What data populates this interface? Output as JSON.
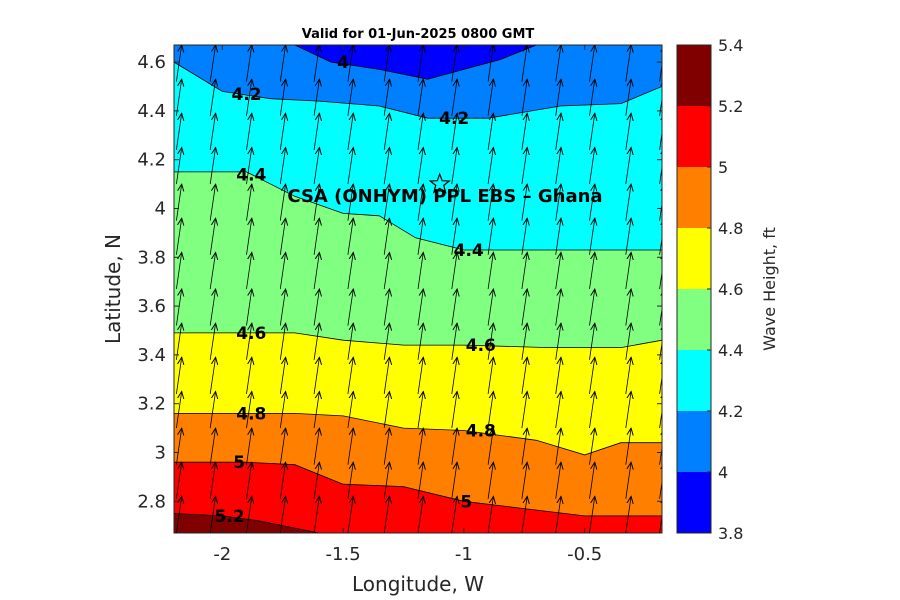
{
  "chart_data": {
    "type": "heatmap",
    "title": "Valid for 01-Jun-2025 0800 GMT",
    "xlabel": "Longitude, W",
    "ylabel": "Latitude, N",
    "xlim": [
      -2.2,
      -0.18
    ],
    "ylim": [
      2.67,
      4.67
    ],
    "x_ticks": [
      -2,
      -1.5,
      -1,
      -0.5
    ],
    "x_tick_labels": [
      "-2",
      "-1.5",
      "-1",
      "-0.5"
    ],
    "y_ticks": [
      2.8,
      3,
      3.2,
      3.4,
      3.6,
      3.8,
      4,
      4.2,
      4.4,
      4.6
    ],
    "y_tick_labels": [
      "2.8",
      "3",
      "3.2",
      "3.4",
      "3.6",
      "3.8",
      "4",
      "4.2",
      "4.4",
      "4.6"
    ],
    "colorbar": {
      "label": "Wave Height, ft",
      "levels": [
        3.8,
        4,
        4.2,
        4.4,
        4.6,
        4.8,
        5,
        5.2,
        5.4
      ],
      "tick_labels": [
        "3.8",
        "4",
        "4.2",
        "4.4",
        "4.6",
        "4.8",
        "5",
        "5.2",
        "5.4"
      ],
      "colors": [
        "#0000ff",
        "#0080ff",
        "#00ffff",
        "#80ff80",
        "#ffff00",
        "#ff8000",
        "#ff0000",
        "#800000"
      ]
    },
    "contours": [
      {
        "level": 4.0,
        "points": [
          [
            -1.7,
            4.67
          ],
          [
            -1.55,
            4.6
          ],
          [
            -1.35,
            4.57
          ],
          [
            -1.15,
            4.53
          ],
          [
            -1.0,
            4.57
          ],
          [
            -0.85,
            4.61
          ],
          [
            -0.7,
            4.67
          ]
        ]
      },
      {
        "level": 4.2,
        "points": [
          [
            -2.2,
            4.6
          ],
          [
            -2.0,
            4.48
          ],
          [
            -1.8,
            4.45
          ],
          [
            -1.6,
            4.44
          ],
          [
            -1.35,
            4.42
          ],
          [
            -1.15,
            4.37
          ],
          [
            -0.9,
            4.37
          ],
          [
            -0.6,
            4.42
          ],
          [
            -0.35,
            4.43
          ],
          [
            -0.18,
            4.5
          ]
        ]
      },
      {
        "level": 4.4,
        "points": [
          [
            -2.2,
            4.15
          ],
          [
            -1.9,
            4.15
          ],
          [
            -1.7,
            4.05
          ],
          [
            -1.5,
            3.98
          ],
          [
            -1.35,
            3.97
          ],
          [
            -1.2,
            3.88
          ],
          [
            -1.0,
            3.83
          ],
          [
            -0.7,
            3.83
          ],
          [
            -0.4,
            3.83
          ],
          [
            -0.18,
            3.83
          ]
        ]
      },
      {
        "level": 4.6,
        "points": [
          [
            -2.2,
            3.49
          ],
          [
            -1.9,
            3.49
          ],
          [
            -1.7,
            3.49
          ],
          [
            -1.5,
            3.46
          ],
          [
            -1.25,
            3.44
          ],
          [
            -1.0,
            3.44
          ],
          [
            -0.65,
            3.43
          ],
          [
            -0.35,
            3.43
          ],
          [
            -0.18,
            3.46
          ]
        ]
      },
      {
        "level": 4.8,
        "points": [
          [
            -2.2,
            3.16
          ],
          [
            -1.9,
            3.16
          ],
          [
            -1.7,
            3.16
          ],
          [
            -1.5,
            3.15
          ],
          [
            -1.25,
            3.1
          ],
          [
            -1.0,
            3.09
          ],
          [
            -0.7,
            3.05
          ],
          [
            -0.5,
            2.99
          ],
          [
            -0.35,
            3.04
          ],
          [
            -0.18,
            3.04
          ]
        ]
      },
      {
        "level": 5.0,
        "points": [
          [
            -2.2,
            2.96
          ],
          [
            -1.9,
            2.96
          ],
          [
            -1.7,
            2.95
          ],
          [
            -1.5,
            2.87
          ],
          [
            -1.25,
            2.86
          ],
          [
            -1.0,
            2.8
          ],
          [
            -0.75,
            2.77
          ],
          [
            -0.5,
            2.74
          ],
          [
            -0.18,
            2.74
          ]
        ]
      },
      {
        "level": 5.2,
        "points": [
          [
            -2.2,
            2.75
          ],
          [
            -2.0,
            2.74
          ],
          [
            -1.85,
            2.72
          ],
          [
            -1.7,
            2.69
          ],
          [
            -1.6,
            2.67
          ]
        ]
      }
    ],
    "contour_labels": [
      {
        "text": "4",
        "x": -1.5,
        "y": 4.6
      },
      {
        "text": "4.2",
        "x": -1.9,
        "y": 4.47
      },
      {
        "text": "4.2",
        "x": -1.04,
        "y": 4.37
      },
      {
        "text": "4.4",
        "x": -1.88,
        "y": 4.14
      },
      {
        "text": "4.4",
        "x": -0.98,
        "y": 3.83
      },
      {
        "text": "4.6",
        "x": -1.88,
        "y": 3.49
      },
      {
        "text": "4.6",
        "x": -0.93,
        "y": 3.44
      },
      {
        "text": "4.8",
        "x": -1.88,
        "y": 3.16
      },
      {
        "text": "4.8",
        "x": -0.93,
        "y": 3.09
      },
      {
        "text": "5",
        "x": -1.93,
        "y": 2.96
      },
      {
        "text": "5",
        "x": -0.99,
        "y": 2.8
      },
      {
        "text": "5.2",
        "x": -1.97,
        "y": 2.74
      }
    ],
    "vectors": {
      "x_positions": [
        -2.19,
        -2.05,
        -1.9,
        -1.76,
        -1.62,
        -1.48,
        -1.33,
        -1.19,
        -1.05,
        -0.9,
        -0.76,
        -0.62,
        -0.48,
        -0.33,
        -0.19
      ],
      "y_positions": [
        2.67,
        2.81,
        2.95,
        3.1,
        3.24,
        3.38,
        3.52,
        3.67,
        3.81,
        3.95,
        4.1,
        4.24,
        4.38,
        4.52,
        4.67
      ],
      "dx": 0.022,
      "dy": 0.15
    },
    "site": {
      "label": "CSA (ONHYM) PPL EBS  – Ghana",
      "x": -1.1,
      "y": 4.1,
      "marker": "star"
    }
  }
}
